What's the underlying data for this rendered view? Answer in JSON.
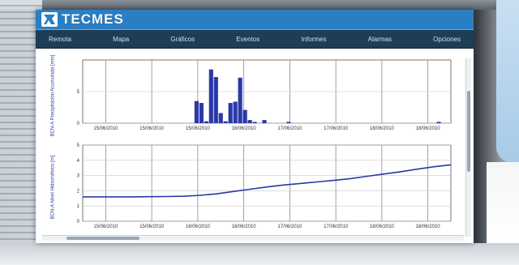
{
  "app": {
    "brand": "TECMES",
    "colors": {
      "header": "#2a7fc4",
      "nav": "#1e3e56",
      "series": "#2b38a6"
    }
  },
  "nav": {
    "items": [
      {
        "label": "Remota"
      },
      {
        "label": "Mapa"
      },
      {
        "label": "Gráficos"
      },
      {
        "label": "Eventos"
      },
      {
        "label": "Informes"
      },
      {
        "label": "Alarmas"
      },
      {
        "label": "Opciones"
      }
    ]
  },
  "chart_data": [
    {
      "type": "bar",
      "ylabel": "BCN-A Precipitación Acumulada [mm]",
      "ylim": [
        0,
        10
      ],
      "yticks": [
        "5",
        "0"
      ],
      "x_ticks": [
        "15/06/2010",
        "15/06/2010",
        "15/06/2010",
        "16/06/2010",
        "17/06/2010",
        "17/06/2010",
        "18/06/2010",
        "18/06/2010"
      ],
      "grid": true,
      "values": [
        0,
        0,
        0,
        0,
        0,
        0,
        0,
        0,
        0,
        0,
        0,
        0,
        0,
        0,
        0,
        0,
        0,
        0,
        0,
        0,
        0,
        0,
        0,
        3.5,
        3.2,
        0.3,
        8.5,
        7.3,
        1.6,
        0.3,
        3.2,
        3.4,
        7.2,
        2.1,
        0.5,
        0.2,
        0,
        0.5,
        0,
        0,
        0,
        0,
        0.2,
        0,
        0,
        0,
        0,
        0,
        0,
        0,
        0,
        0,
        0,
        0,
        0,
        0,
        0,
        0,
        0,
        0,
        0,
        0,
        0,
        0,
        0,
        0,
        0,
        0,
        0,
        0,
        0,
        0,
        0,
        0.2,
        0,
        0
      ]
    },
    {
      "type": "line",
      "ylabel": "BCN-A Nivel Hidrométrico [m]",
      "ylim": [
        0,
        5
      ],
      "yticks": [
        "5",
        "4",
        "3",
        "2",
        "1",
        "0"
      ],
      "x_ticks": [
        "15/06/2010",
        "15/06/2010",
        "16/06/2010",
        "16/06/2010",
        "17/06/2010",
        "17/06/2010",
        "18/06/2010",
        "18/06/2010"
      ],
      "grid": true,
      "series": [
        {
          "values": [
            1.6,
            1.6,
            1.6,
            1.6,
            1.61,
            1.62,
            1.64,
            1.7,
            1.8,
            1.95,
            2.1,
            2.25,
            2.38,
            2.48,
            2.58,
            2.68,
            2.8,
            2.95,
            3.1,
            3.25,
            3.42,
            3.58,
            3.7
          ]
        }
      ]
    }
  ]
}
